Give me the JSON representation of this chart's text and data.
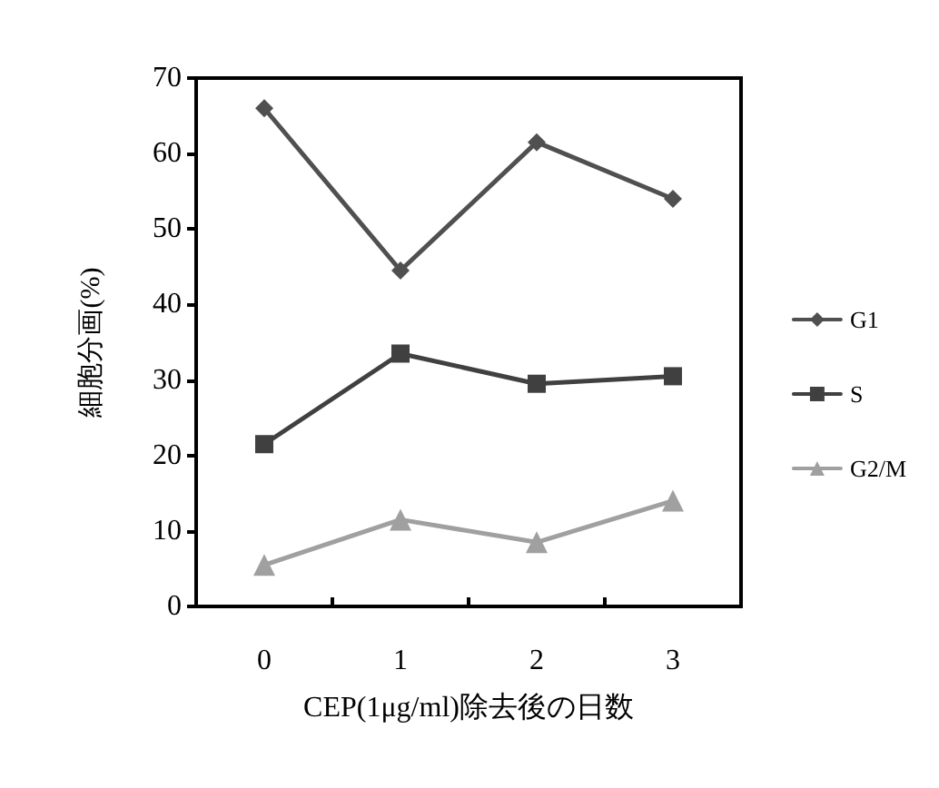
{
  "chart_data": {
    "type": "line",
    "xlabel": "CEP(1μg/ml)除去後の日数",
    "ylabel": "細胞分画(%)",
    "categories": [
      "0",
      "1",
      "2",
      "3"
    ],
    "ylim": [
      0,
      70
    ],
    "yticks": [
      0,
      10,
      20,
      30,
      40,
      50,
      60,
      70
    ],
    "grid": false,
    "legend": "right",
    "line_style": "solid",
    "series": [
      {
        "name": "G1",
        "color": "#505050",
        "marker": "diamond",
        "values": [
          66,
          44.5,
          61.5,
          54
        ]
      },
      {
        "name": "S",
        "color": "#404040",
        "marker": "square",
        "values": [
          21.5,
          33.5,
          29.5,
          30.5
        ]
      },
      {
        "name": "G2/M",
        "color": "#a0a0a0",
        "marker": "triangle",
        "values": [
          5.5,
          11.5,
          8.5,
          14
        ]
      }
    ]
  }
}
